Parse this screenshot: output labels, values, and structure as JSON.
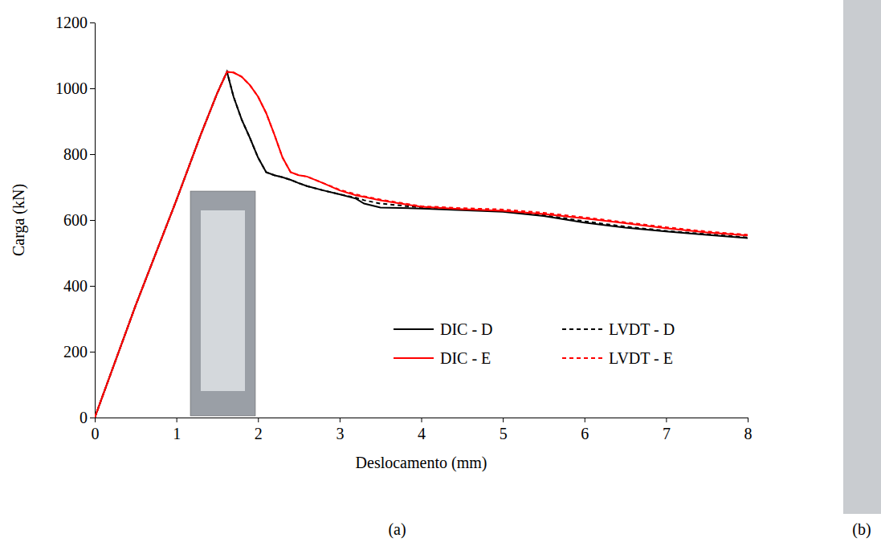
{
  "chart_data": {
    "type": "line",
    "x_label": "Deslocamento (mm)",
    "y_label": "Carga (kN)",
    "panel_labels": [
      "(a)",
      "(b)"
    ],
    "xlim": [
      0,
      8
    ],
    "ylim": [
      0,
      1200
    ],
    "xticks": [
      0,
      1,
      2,
      3,
      4,
      5,
      6,
      7,
      8
    ],
    "yticks": [
      0,
      200,
      400,
      600,
      800,
      1000,
      1200
    ],
    "grid": false,
    "legend": "lower right",
    "x": [
      0,
      0.5,
      1,
      1.3,
      1.5,
      1.62,
      1.7,
      1.8,
      1.9,
      2,
      2.1,
      2.2,
      2.3,
      2.4,
      2.5,
      2.6,
      2.8,
      3,
      3.2,
      3.3,
      3.5,
      4,
      4.5,
      5,
      5.5,
      6,
      6.5,
      7,
      7.5,
      8
    ],
    "series": [
      {
        "name": "DIC - D",
        "color": "#000000",
        "line_style": "solid",
        "values": [
          0,
          340,
          660,
          860,
          985,
          1050,
          975,
          905,
          850,
          790,
          745,
          736,
          730,
          722,
          712,
          703,
          690,
          678,
          665,
          650,
          638,
          635,
          630,
          625,
          612,
          592,
          577,
          565,
          555,
          545
        ]
      },
      {
        "name": "LVDT - D",
        "color": "#000000",
        "line_style": "dashed",
        "values": [
          0,
          340,
          660,
          860,
          985,
          1050,
          975,
          905,
          850,
          790,
          745,
          736,
          730,
          722,
          712,
          703,
          690,
          678,
          668,
          660,
          650,
          638,
          632,
          627,
          615,
          596,
          580,
          567,
          557,
          547
        ]
      },
      {
        "name": "DIC - E",
        "color": "#ff0000",
        "line_style": "solid",
        "values": [
          0,
          340,
          660,
          860,
          985,
          1050,
          1048,
          1035,
          1010,
          975,
          925,
          860,
          790,
          745,
          736,
          732,
          712,
          690,
          675,
          670,
          660,
          640,
          633,
          628,
          618,
          605,
          590,
          575,
          562,
          553
        ]
      },
      {
        "name": "LVDT - E",
        "color": "#ff0000",
        "line_style": "dashed",
        "values": [
          0,
          340,
          660,
          860,
          985,
          1050,
          1048,
          1035,
          1010,
          975,
          925,
          860,
          790,
          745,
          736,
          732,
          712,
          692,
          678,
          672,
          662,
          642,
          636,
          632,
          622,
          608,
          593,
          578,
          565,
          555
        ]
      }
    ]
  }
}
